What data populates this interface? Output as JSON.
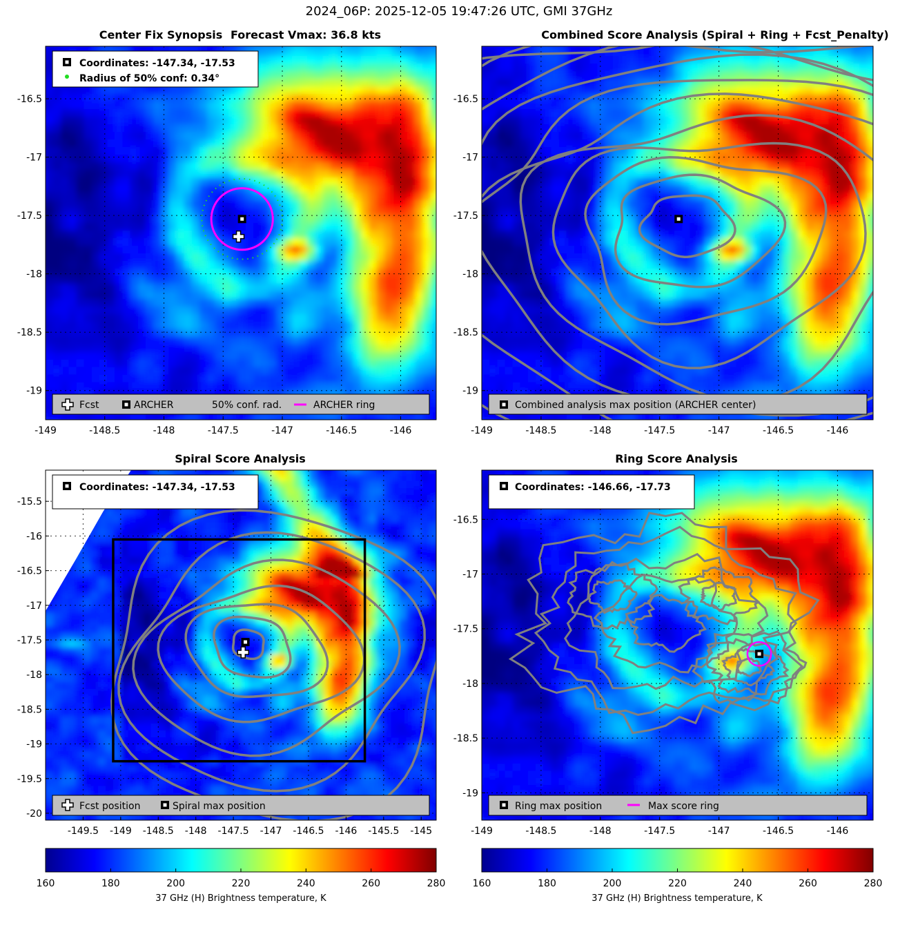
{
  "figure": {
    "title": "2024_06P: 2025-12-05 19:47:26 UTC, GMI 37GHz"
  },
  "colors": {
    "archer_ring": "#ff00ff",
    "conf_dots": "#22dd22",
    "contour": "#808080",
    "legend_bg": "#bfbfbf",
    "spiral_box": "#000000"
  },
  "chart_data": [
    {
      "id": "synopsis",
      "type": "heatmap",
      "title_left": "Center Fix Synopsis",
      "title_right": "Forecast Vmax: 36.8 kts",
      "xlim": [
        -149.0,
        -145.7
      ],
      "ylim": [
        -19.25,
        -16.05
      ],
      "xticks": [
        -149,
        -148.5,
        -148,
        -147.5,
        -147,
        -146.5,
        -146
      ],
      "yticks": [
        -16.5,
        -17,
        -17.5,
        -18,
        -18.5,
        -19
      ],
      "xtick_labels": [
        "-149",
        "-148.5",
        "-148",
        "-147.5",
        "-147",
        "-146.5",
        "-146"
      ],
      "ytick_labels": [
        "-16.5",
        "-17",
        "-17.5",
        "-18",
        "-18.5",
        "-19"
      ],
      "info_lines": [
        "Coordinates: -147.34, -17.53",
        "Radius of 50% conf: 0.34°"
      ],
      "legend": [
        "Fcst",
        "ARCHER",
        "50% conf. rad.",
        "ARCHER ring"
      ],
      "archer_center": [
        -147.34,
        -17.53
      ],
      "fcst_position": [
        -147.37,
        -17.68
      ],
      "archer_ring_radius_deg": 0.26,
      "conf_radius_deg": 0.34
    },
    {
      "id": "combined",
      "type": "heatmap",
      "title": "Combined Score Analysis (Spiral + Ring + Fcst_Penalty)",
      "xlim": [
        -149.0,
        -145.7
      ],
      "ylim": [
        -19.25,
        -16.05
      ],
      "xticks": [
        -149,
        -148.5,
        -148,
        -147.5,
        -147,
        -146.5,
        -146
      ],
      "yticks": [
        -16.5,
        -17,
        -17.5,
        -18,
        -18.5,
        -19
      ],
      "xtick_labels": [
        "-149",
        "-148.5",
        "-148",
        "-147.5",
        "-147",
        "-146.5",
        "-146"
      ],
      "ytick_labels": [
        "-16.5",
        "-17",
        "-17.5",
        "-18",
        "-18.5",
        "-19"
      ],
      "legend": [
        "Combined analysis max position (ARCHER center)"
      ],
      "max_position": [
        -147.34,
        -17.53
      ]
    },
    {
      "id": "spiral",
      "type": "heatmap",
      "title": "Spiral Score Analysis",
      "xlim": [
        -150.0,
        -144.8
      ],
      "ylim": [
        -20.1,
        -15.05
      ],
      "xticks": [
        -149.5,
        -149,
        -148.5,
        -148,
        -147.5,
        -147,
        -146.5,
        -146,
        -145.5,
        -145
      ],
      "yticks": [
        -15.5,
        -16,
        -16.5,
        -17,
        -17.5,
        -18,
        -18.5,
        -19,
        -19.5,
        -20
      ],
      "xtick_labels": [
        "-149.5",
        "-149",
        "-148.5",
        "-148",
        "-147.5",
        "-147",
        "-146.5",
        "-146",
        "-145.5",
        "-145"
      ],
      "ytick_labels": [
        "-15.5",
        "-16",
        "-16.5",
        "-17",
        "-17.5",
        "-18",
        "-18.5",
        "-19",
        "-19.5",
        "-20"
      ],
      "info_lines": [
        "Coordinates: -147.34, -17.53"
      ],
      "legend": [
        "Fcst position",
        "Spiral max position"
      ],
      "max_position": [
        -147.34,
        -17.53
      ],
      "fcst_position": [
        -147.37,
        -17.68
      ],
      "search_box": [
        -149.1,
        -16.05,
        -145.75,
        -19.25
      ]
    },
    {
      "id": "ring",
      "type": "heatmap",
      "title": "Ring Score Analysis",
      "xlim": [
        -149.0,
        -145.7
      ],
      "ylim": [
        -19.25,
        -16.05
      ],
      "xticks": [
        -149,
        -148.5,
        -148,
        -147.5,
        -147,
        -146.5,
        -146
      ],
      "yticks": [
        -16.5,
        -17,
        -17.5,
        -18,
        -18.5,
        -19
      ],
      "xtick_labels": [
        "-149",
        "-148.5",
        "-148",
        "-147.5",
        "-147",
        "-146.5",
        "-146"
      ],
      "ytick_labels": [
        "-16.5",
        "-17",
        "-17.5",
        "-18",
        "-18.5",
        "-19"
      ],
      "info_lines": [
        "Coordinates: -146.66, -17.73"
      ],
      "legend": [
        "Ring max position",
        "Max score ring"
      ],
      "max_position": [
        -146.66,
        -17.73
      ],
      "max_ring_radius_deg": 0.1
    }
  ],
  "colorbars": [
    {
      "label": "37 GHz (H) Brightness temperature, K",
      "min": 160,
      "max": 280,
      "ticks": [
        160,
        180,
        200,
        220,
        240,
        260,
        280
      ],
      "tick_labels": [
        "160",
        "180",
        "200",
        "220",
        "240",
        "260",
        "280"
      ]
    },
    {
      "label": "37 GHz (H) Brightness temperature, K",
      "min": 160,
      "max": 280,
      "ticks": [
        160,
        180,
        200,
        220,
        240,
        260,
        280
      ],
      "tick_labels": [
        "160",
        "180",
        "200",
        "220",
        "240",
        "260",
        "280"
      ]
    }
  ]
}
